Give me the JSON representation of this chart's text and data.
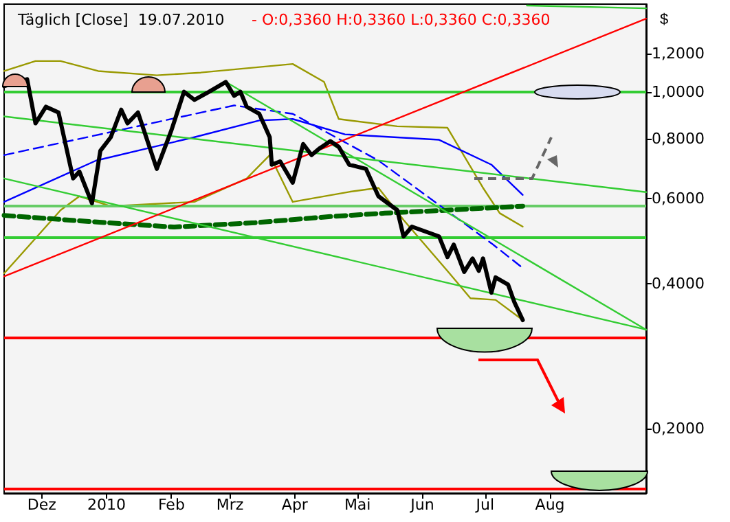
{
  "chart_data": {
    "type": "line",
    "title": "Täglich [Close]  19.07.2010",
    "subtitle": "- O:0,3360 H:0,3360 L:0,3360 C:0,3360",
    "ylabel": "$",
    "log": "y",
    "grid": false,
    "marker": "none",
    "line_style": "solid",
    "xlim": [
      "2009-11-13",
      "2010-09-16"
    ],
    "xticks": [
      {
        "value": "2009-12-01",
        "label": "Dez"
      },
      {
        "value": "2010-01-01",
        "label": "2010"
      },
      {
        "value": "2010-02-01",
        "label": "Feb"
      },
      {
        "value": "2010-03-01",
        "label": "Mrz"
      },
      {
        "value": "2010-04-01",
        "label": "Apr"
      },
      {
        "value": "2010-05-01",
        "label": "Mai"
      },
      {
        "value": "2010-06-01",
        "label": "Jun"
      },
      {
        "value": "2010-07-01",
        "label": "Jul"
      },
      {
        "value": "2010-08-01",
        "label": "Aug"
      }
    ],
    "ylim": [
      0.147,
      1.52
    ],
    "yticks": [
      {
        "value": 0.2,
        "label": "0,2000"
      },
      {
        "value": 0.4,
        "label": "0,4000"
      },
      {
        "value": 0.6,
        "label": "0,6000"
      },
      {
        "value": 0.8,
        "label": "0,8000"
      },
      {
        "value": 1.0,
        "label": "1,0000"
      },
      {
        "value": 1.2,
        "label": "1,2000"
      }
    ],
    "ref_lines": [
      {
        "axis": "y",
        "value": 1.0,
        "color": "#33cc33"
      },
      {
        "axis": "y",
        "value": 0.5,
        "color": "#33cc33"
      },
      {
        "axis": "y",
        "value": 0.579,
        "color": "#66cc66"
      },
      {
        "axis": "y",
        "value": 0.31,
        "color": "#ff0000"
      },
      {
        "axis": "y",
        "value": 0.15,
        "color": "#ff0000"
      }
    ],
    "series": [
      {
        "color": "#999900",
        "x": [
          "2009-11-13",
          "2009-11-28",
          "2009-12-10",
          "2009-12-28",
          "2010-01-25",
          "2010-02-15",
          "2010-03-31",
          "2010-04-15",
          "2010-04-22",
          "2010-05-20",
          "2010-06-13",
          "2010-06-30",
          "2010-07-08",
          "2010-07-19"
        ],
        "values": [
          1.104,
          1.158,
          1.158,
          1.104,
          1.082,
          1.096,
          1.142,
          1.048,
          0.878,
          0.848,
          0.842,
          0.632,
          0.56,
          0.525
        ]
      },
      {
        "color": "#999900",
        "x": [
          "2009-11-13",
          "2009-11-20",
          "2009-12-10",
          "2009-12-19",
          "2010-01-03",
          "2010-02-12",
          "2010-03-09",
          "2010-03-20",
          "2010-03-31",
          "2010-04-27",
          "2010-05-11",
          "2010-05-23",
          "2010-06-13",
          "2010-06-24",
          "2010-07-06",
          "2010-07-19"
        ],
        "values": [
          0.42,
          0.454,
          0.568,
          0.607,
          0.579,
          0.591,
          0.661,
          0.739,
          0.591,
          0.62,
          0.632,
          0.542,
          0.425,
          0.373,
          0.37,
          0.336
        ]
      },
      {
        "color": "#0000ff",
        "x": [
          "2009-11-13",
          "2009-12-27",
          "2010-02-12",
          "2010-03-15",
          "2010-03-31",
          "2010-04-25",
          "2010-06-09",
          "2010-07-04",
          "2010-07-19"
        ],
        "values": [
          0.591,
          0.72,
          0.805,
          0.872,
          0.878,
          0.816,
          0.795,
          0.706,
          0.611
        ]
      },
      {
        "color": "#0000ff",
        "line_style": "dashed",
        "x": [
          "2009-11-13",
          "2010-03-03",
          "2010-03-31",
          "2010-05-11",
          "2010-07-04",
          "2010-07-19"
        ],
        "values": [
          0.739,
          0.937,
          0.9,
          0.72,
          0.485,
          0.431
        ]
      },
      {
        "color": "#006600",
        "line_style": "dashed",
        "x": [
          "2009-11-13",
          "2010-01-01",
          "2010-02-02",
          "2010-03-13",
          "2010-04-18",
          "2010-05-14",
          "2010-06-13",
          "2010-07-19"
        ],
        "values": [
          0.554,
          0.535,
          0.524,
          0.535,
          0.551,
          0.56,
          0.568,
          0.579
        ]
      },
      {
        "color": "#33cc33",
        "x": [
          "2010-02-27",
          "2010-09-16"
        ],
        "values": [
          1.048,
          0.321
        ]
      },
      {
        "color": "#33cc33",
        "x": [
          "2009-11-13",
          "2010-09-16"
        ],
        "values": [
          0.889,
          0.619
        ]
      },
      {
        "color": "#33cc33",
        "x": [
          "2009-11-13",
          "2010-09-16"
        ],
        "values": [
          0.661,
          0.321
        ]
      },
      {
        "color": "#33cc33",
        "x": [
          "2010-07-21",
          "2010-09-16"
        ],
        "values": [
          1.51,
          1.49
        ]
      },
      {
        "color": "#ff0000",
        "x": [
          "2009-11-13",
          "2010-09-16"
        ],
        "values": [
          0.414,
          1.418
        ]
      },
      {
        "color": "#000000",
        "x": [
          "2009-11-13",
          "2009-11-24",
          "2009-11-28",
          "2009-12-03",
          "2009-12-09",
          "2009-12-16",
          "2009-12-19",
          "2009-12-25",
          "2009-12-29",
          "2010-01-03",
          "2010-01-08",
          "2010-01-11",
          "2010-01-16",
          "2010-01-25",
          "2010-02-01",
          "2010-02-07",
          "2010-02-12",
          "2010-02-19",
          "2010-02-27",
          "2010-03-03",
          "2010-03-06",
          "2010-03-09",
          "2010-03-15",
          "2010-03-20",
          "2010-03-21",
          "2010-03-25",
          "2010-03-31",
          "2010-04-05",
          "2010-04-09",
          "2010-04-13",
          "2010-04-18",
          "2010-04-22",
          "2010-04-27",
          "2010-05-05",
          "2010-05-11",
          "2010-05-20",
          "2010-05-23",
          "2010-05-27",
          "2010-06-09",
          "2010-06-13",
          "2010-06-16",
          "2010-06-21",
          "2010-06-25",
          "2010-06-28",
          "2010-06-30",
          "2010-07-04",
          "2010-07-06",
          "2010-07-12",
          "2010-07-15",
          "2010-07-19"
        ],
        "values": [
          1.027,
          1.062,
          0.86,
          0.931,
          0.906,
          0.661,
          0.683,
          0.587,
          0.754,
          0.805,
          0.918,
          0.86,
          0.906,
          0.692,
          0.832,
          1.0,
          0.962,
          1.0,
          1.048,
          0.981,
          1.0,
          0.931,
          0.9,
          0.805,
          0.706,
          0.717,
          0.648,
          0.779,
          0.739,
          0.764,
          0.79,
          0.769,
          0.706,
          0.692,
          0.607,
          0.568,
          0.501,
          0.525,
          0.501,
          0.454,
          0.482,
          0.423,
          0.451,
          0.425,
          0.451,
          0.383,
          0.412,
          0.398,
          0.366,
          0.336
        ]
      }
    ]
  }
}
